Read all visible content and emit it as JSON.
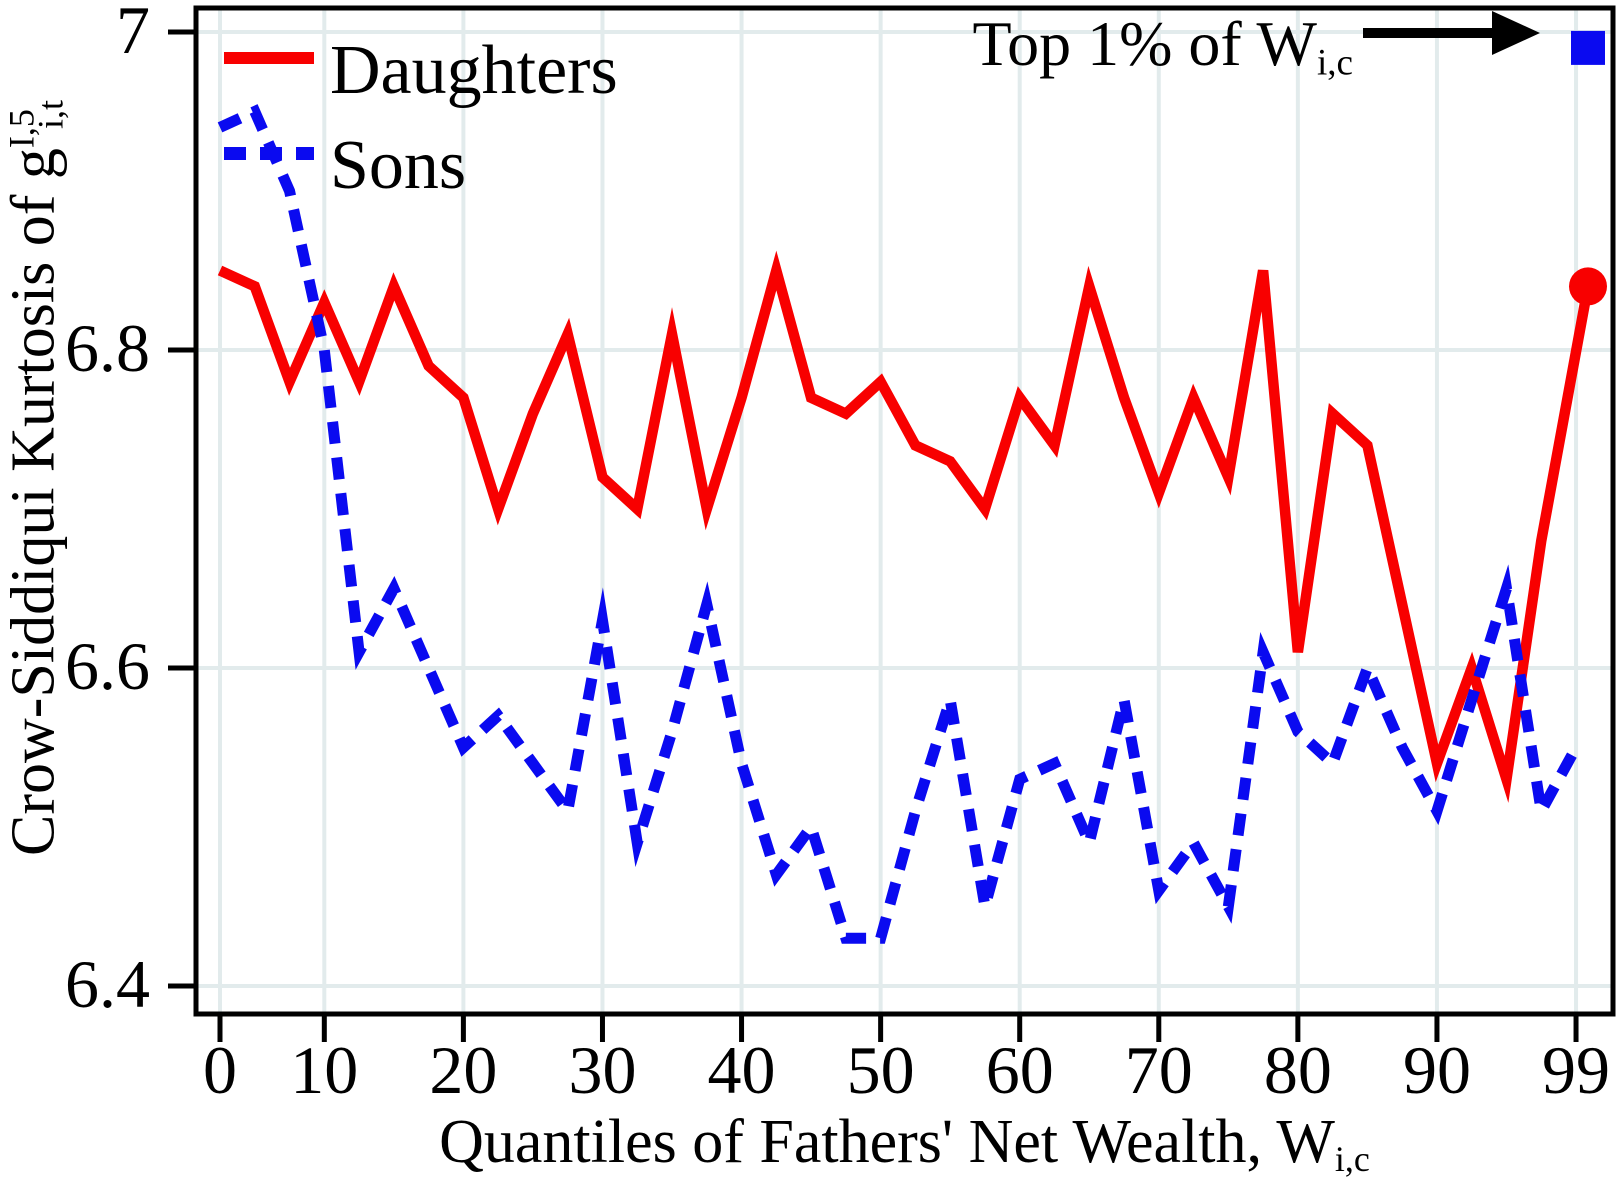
{
  "figure": {
    "legend": {
      "items": [
        {
          "label": "Daughters",
          "style": "solid",
          "color": "#f80000"
        },
        {
          "label": "Sons",
          "style": "dashed",
          "color": "#0a0af0"
        }
      ]
    },
    "annotation": {
      "text_main": "Top 1% of W",
      "text_sub": "i,c"
    },
    "y_axis": {
      "title_main": "Crow-Siddiqui Kurtosis of g",
      "title_sup": "I,5",
      "title_sub": "i,t"
    },
    "x_axis": {
      "title_main": "Quantiles of Fathers' Net Wealth, W",
      "title_sub": "i,c"
    }
  },
  "chart_data": {
    "type": "line",
    "title": "",
    "xlabel": "Quantiles of Fathers' Net Wealth, W_i,c",
    "ylabel": "Crow-Siddiqui Kurtosis of g^I,5_i,t",
    "grid": true,
    "legend_position": "top-left",
    "x_axis": {
      "kind": "40 quantile bins of fathers' net wealth (bin index 1-40)",
      "tick_labels": [
        "0",
        "10",
        "20",
        "30",
        "40",
        "50",
        "60",
        "70",
        "80",
        "90",
        "99"
      ],
      "tick_bins": [
        1,
        4,
        8,
        12,
        16,
        20,
        24,
        28,
        32,
        36,
        40
      ]
    },
    "y_axis": {
      "tick_labels": [
        "7",
        "6.8",
        "6.6",
        "6.4"
      ],
      "tick_values": [
        7.0,
        6.8,
        6.6,
        6.4
      ],
      "range": [
        6.382,
        7.015
      ]
    },
    "series": [
      {
        "name": "Daughters",
        "color": "#f80000",
        "style": "solid",
        "values": [
          6.85,
          6.84,
          6.78,
          6.83,
          6.78,
          6.84,
          6.79,
          6.77,
          6.7,
          6.76,
          6.81,
          6.72,
          6.7,
          6.81,
          6.7,
          6.77,
          6.85,
          6.77,
          6.76,
          6.78,
          6.74,
          6.73,
          6.7,
          6.77,
          6.74,
          6.84,
          6.77,
          6.71,
          6.77,
          6.72,
          6.85,
          6.61,
          6.76,
          6.74,
          6.64,
          6.54,
          6.6,
          6.53,
          6.68,
          6.84
        ]
      },
      {
        "name": "Sons",
        "color": "#0a0af0",
        "style": "dashed",
        "values": [
          6.94,
          6.95,
          6.9,
          6.8,
          6.61,
          6.65,
          6.6,
          6.55,
          6.57,
          6.54,
          6.51,
          6.63,
          6.49,
          6.56,
          6.64,
          6.54,
          6.47,
          6.5,
          6.43,
          6.43,
          6.51,
          6.58,
          6.45,
          6.53,
          6.54,
          6.49,
          6.58,
          6.46,
          6.49,
          6.45,
          6.61,
          6.56,
          6.54,
          6.6,
          6.55,
          6.51,
          6.58,
          6.65,
          6.51,
          6.55
        ]
      }
    ],
    "top_1pct_markers": {
      "label": "Top 1% of W_i,c",
      "daughters": {
        "shape": "circle",
        "color": "#f80000",
        "value": 6.84
      },
      "sons": {
        "shape": "square",
        "color": "#0a0af0",
        "value": 6.99
      }
    }
  }
}
